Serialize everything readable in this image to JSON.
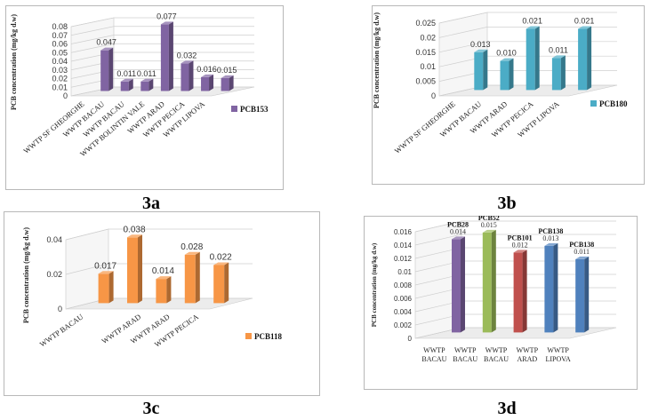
{
  "chart_data": [
    {
      "id": "3a",
      "type": "bar",
      "caption": "3a",
      "ylabel": "PCB concentration (mg/kg d.w)",
      "ylim": [
        0,
        0.08
      ],
      "yticks": [
        "0",
        "0.01",
        "0.02",
        "0.03",
        "0.04",
        "0.05",
        "0.06",
        "0.07",
        "0.08"
      ],
      "categories": [
        "WWTP SF GHEORGHE",
        "WWTP BACAU",
        "WWTP BACAU",
        "WWTP BOLINTIN VALE",
        "WWTP ARAD",
        "WWTP PECICA",
        "WWTP LIPOVA"
      ],
      "values": [
        0.047,
        0.011,
        0.011,
        0.077,
        0.032,
        0.016,
        0.015
      ],
      "value_labels": [
        "0.047",
        "0.011",
        "0.011",
        "0.077",
        "0.032",
        "0.016",
        "0.015"
      ],
      "series": [
        {
          "name": "PCB153",
          "color": "#8064a2"
        }
      ],
      "legend": "right",
      "grid": true
    },
    {
      "id": "3b",
      "type": "bar",
      "caption": "3b",
      "ylabel": "PCB concentration (mg/kg d.w)",
      "ylim": [
        0,
        0.025
      ],
      "yticks": [
        "0",
        "0.005",
        "0.01",
        "0.015",
        "0.02",
        "0.025"
      ],
      "categories": [
        "WWTP SF GHEORGHE",
        "WWTP BACAU",
        "WWTP ARAD",
        "WWTP PECICA",
        "WWTP LIPOVA"
      ],
      "values": [
        0.013,
        0.01,
        0.021,
        0.011,
        0.021
      ],
      "value_labels": [
        "0.013",
        "0.010",
        "0.021",
        "0.011",
        "0.021"
      ],
      "series": [
        {
          "name": "PCB180",
          "color": "#4bacc6"
        }
      ],
      "legend": "right",
      "grid": true
    },
    {
      "id": "3c",
      "type": "bar",
      "caption": "3c",
      "ylabel": "PCB concentration (mg/kg d.w)",
      "ylim": [
        0,
        0.04
      ],
      "yticks": [
        "0",
        "0.02",
        "0.04"
      ],
      "categories": [
        "WWTP BACAU",
        "",
        "WWTP ARAD",
        "WWTP ARAD",
        "WWTP PECICA"
      ],
      "values": [
        0.017,
        0.038,
        0.014,
        0.028,
        0.022
      ],
      "value_labels": [
        "0.017",
        "0.038",
        "0.014",
        "0.028",
        "0.022"
      ],
      "series": [
        {
          "name": "PCB118",
          "color": "#f79646"
        }
      ],
      "legend": "right",
      "grid": true
    },
    {
      "id": "3d",
      "type": "bar",
      "caption": "3d",
      "ylabel": "PCB concentration (mg/kg d.w)",
      "ylim": [
        0,
        0.016
      ],
      "yticks": [
        "0",
        "0.002",
        "0.004",
        "0.006",
        "0.008",
        "0.01",
        "0.012",
        "0.014",
        "0.016"
      ],
      "categories": [
        "WWTP BACAU",
        "WWTP BACAU",
        "WWTP BACAU",
        "WWTP ARAD",
        "WWTP LIPOVA"
      ],
      "values": [
        0.014,
        0.015,
        0.012,
        0.013,
        0.011
      ],
      "value_labels": [
        "0.014",
        "0.015",
        "0.012",
        "0.013",
        "0.011"
      ],
      "bar_names": [
        "PCB28",
        "PCB52",
        "PCB101",
        "PCB138",
        "PCB138"
      ],
      "bar_colors": [
        "#8064a2",
        "#9bbb59",
        "#c0504d",
        "#4f81bd",
        "#4f81bd"
      ],
      "legend": "none",
      "grid": true
    }
  ]
}
